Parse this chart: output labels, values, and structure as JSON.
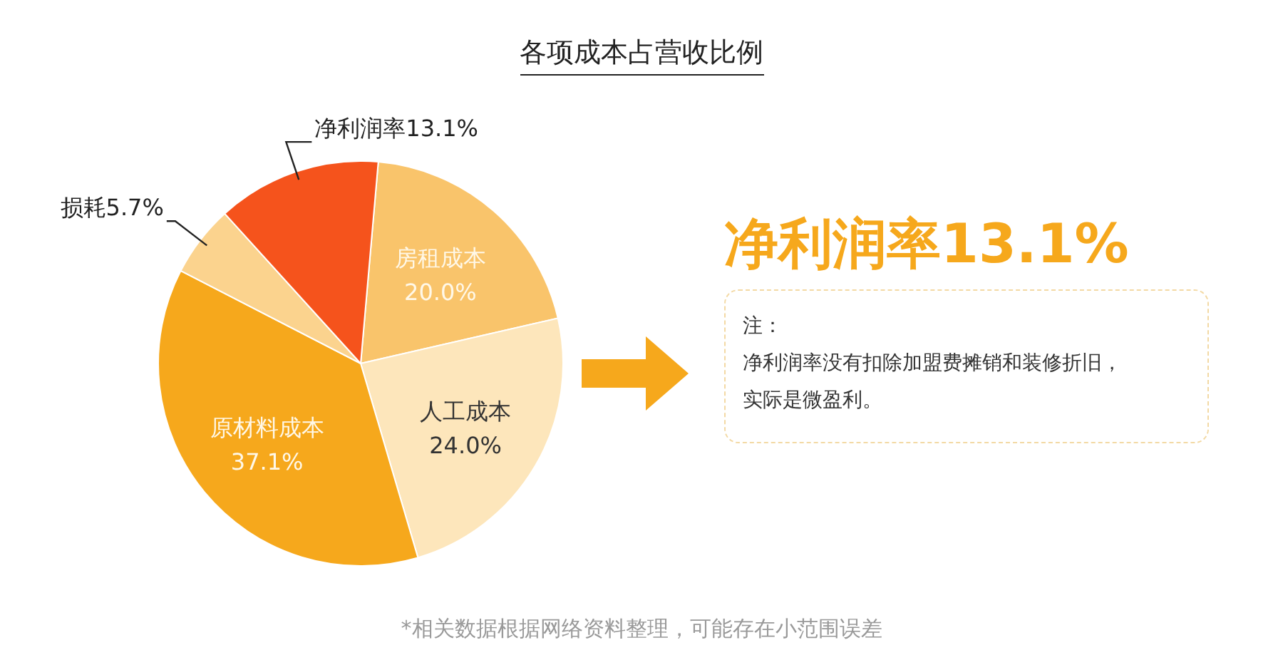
{
  "chart_data": {
    "type": "pie",
    "title": "各项成本占营收比例",
    "categories": [
      "房租成本",
      "人工成本",
      "原材料成本",
      "损耗",
      "净利润率"
    ],
    "values": [
      20.0,
      24.0,
      37.1,
      5.7,
      13.1
    ],
    "value_labels": [
      "20.0%",
      "24.0%",
      "37.1%",
      "5.7%",
      "13.1%"
    ],
    "colors": [
      "#f9c46b",
      "#fde6bb",
      "#f6a81c",
      "#fbd38e",
      "#f5531c"
    ],
    "annotations": [
      "净利润率13.1%",
      "注：",
      "净利润率没有扣除加盟费摊销和装修折旧，",
      "实际是微盈利。",
      "*相关数据根据网络资料整理，可能存在小范围误差"
    ]
  }
}
